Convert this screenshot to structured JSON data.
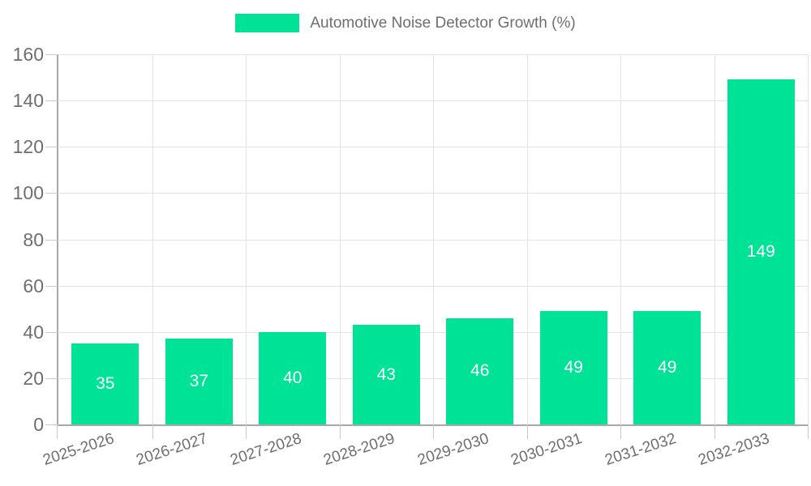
{
  "legend": {
    "label": "Automotive Noise Detector Growth (%)"
  },
  "colors": {
    "bar": "#00E396",
    "grid": "#e3e3e3",
    "tick": "#c9c9c9",
    "axis": "#a8a8a8",
    "label_text": "#6e6e6e",
    "value_label": "#ffffff",
    "background": "#ffffff"
  },
  "chart_data": {
    "type": "bar",
    "title": "Automotive Noise Detector Growth (%)",
    "categories": [
      "2025-2026",
      "2026-2027",
      "2027-2028",
      "2028-2029",
      "2029-2030",
      "2030-2031",
      "2031-2032",
      "2032-2033"
    ],
    "series": [
      {
        "name": "Automotive Noise Detector Growth (%)",
        "values": [
          35,
          37,
          40,
          43,
          46,
          49,
          49,
          149
        ]
      }
    ],
    "values": [
      35,
      37,
      40,
      43,
      46,
      49,
      49,
      149
    ],
    "bar_value_labels": [
      "35",
      "37",
      "40",
      "43",
      "46",
      "49",
      "49",
      "149"
    ],
    "xlabel": "",
    "ylabel": "",
    "ylim": [
      0,
      160
    ],
    "yticks": [
      0,
      20,
      40,
      60,
      80,
      100,
      120,
      140,
      160
    ],
    "grid": true,
    "vertical_grid": true,
    "legend_position": "top-center",
    "value_label_position": "centered-inside-bar",
    "x_label_rotation_deg": -18
  }
}
